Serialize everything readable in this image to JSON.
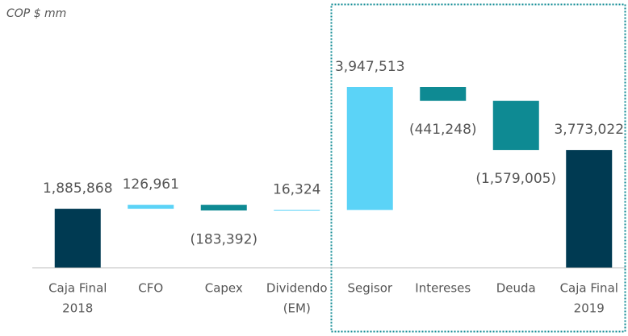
{
  "chart_data": {
    "type": "waterfall",
    "subtitle": "COP $ mm",
    "categories": [
      [
        "Caja Final",
        "2018"
      ],
      [
        "CFO"
      ],
      [
        "Capex"
      ],
      [
        "Dividendo",
        "(EM)"
      ],
      [
        "Segisor"
      ],
      [
        "Intereses"
      ],
      [
        "Deuda"
      ],
      [
        "Caja Final",
        "2019"
      ]
    ],
    "values": [
      1885868,
      126961,
      -183392,
      16324,
      3947513,
      -441248,
      -1579005,
      3773022
    ],
    "value_labels": [
      "1,885,868",
      "126,961",
      "(183,392)",
      "16,324",
      "3,947,513",
      "(441,248)",
      "(1,579,005)",
      "3,773,022"
    ],
    "totals": [
      true,
      false,
      false,
      false,
      false,
      false,
      false,
      true
    ],
    "colors": [
      "#003a52",
      "#5bd3f7",
      "#0e8a93",
      "#5bd3f7",
      "#5bd3f7",
      "#0e8a93",
      "#0e8a93",
      "#003a52"
    ]
  }
}
